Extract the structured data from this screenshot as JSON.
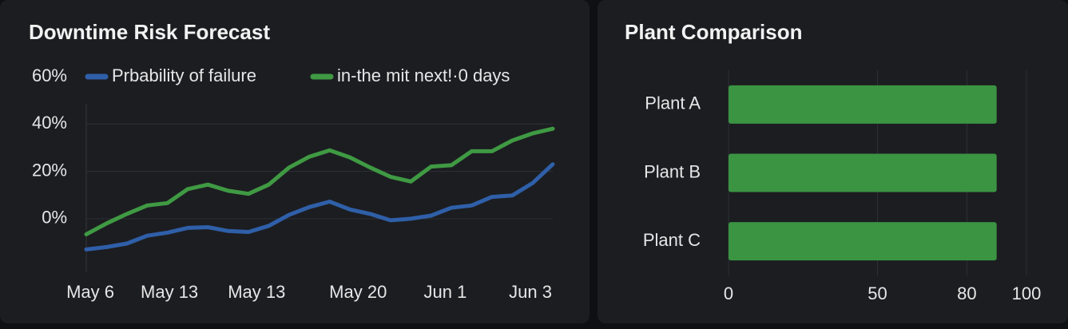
{
  "chart_data": [
    {
      "type": "line",
      "title": "Downtime Risk Forecast",
      "series": [
        {
          "name": "Prbability of failure",
          "color": "#2f5fa8",
          "values": [
            -13,
            -12,
            -10.5,
            -7.2,
            -5.9,
            -3.9,
            -3.6,
            -5.2,
            -5.6,
            -3,
            1.6,
            4.9,
            7.2,
            3.9,
            2,
            -0.7,
            0,
            1.3,
            4.6,
            5.6,
            9.2,
            9.8,
            15,
            23
          ]
        },
        {
          "name": "in-the mit  next!·0 days",
          "color": "#3f9a43",
          "values": [
            -6.6,
            -2,
            2,
            5.6,
            6.6,
            12.5,
            14.4,
            11.8,
            10.5,
            14.4,
            21.6,
            26.2,
            28.9,
            25.9,
            21.6,
            17.7,
            15.7,
            22,
            22.6,
            28.5,
            28.5,
            33,
            36,
            38
          ]
        }
      ],
      "xlim": [
        0,
        23
      ],
      "xticks": [
        {
          "value": 0.2,
          "label": "May 6"
        },
        {
          "value": 4.1,
          "label": "May 13"
        },
        {
          "value": 8.4,
          "label": "May 13"
        },
        {
          "value": 13.4,
          "label": "May 20"
        },
        {
          "value": 17.7,
          "label": "Jun 1"
        },
        {
          "value": 21.9,
          "label": "Jun 3"
        }
      ],
      "ylim": [
        -24,
        60
      ],
      "yticks": [
        {
          "value": 60,
          "label": "60%"
        },
        {
          "value": 40,
          "label": "40%"
        },
        {
          "value": 20,
          "label": "20%"
        },
        {
          "value": 0,
          "label": "0%"
        }
      ],
      "grid": true
    },
    {
      "type": "hbar",
      "title": "Plant Comparison",
      "categories": [
        "Plant A",
        "Plant B",
        "Plant C"
      ],
      "values": [
        90,
        90,
        90
      ],
      "color": "#3a9442",
      "xlim": [
        0,
        100
      ],
      "xticks": [
        0,
        50,
        80,
        100
      ],
      "grid": true
    }
  ]
}
